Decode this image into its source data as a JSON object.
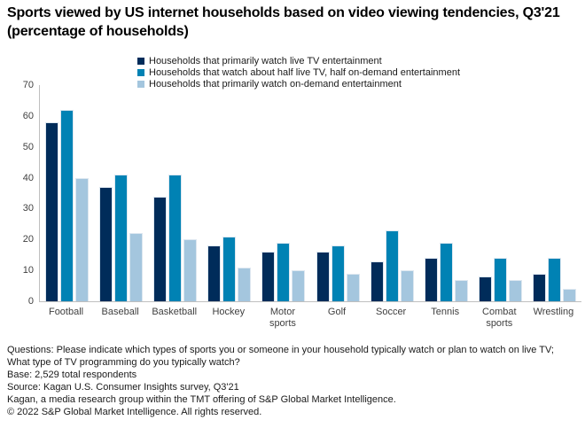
{
  "title": "Sports viewed by US internet households based on video viewing tendencies, Q3'21 (percentage of households)",
  "chart_data": {
    "type": "bar",
    "categories": [
      "Football",
      "Baseball",
      "Basketball",
      "Hockey",
      "Motor sports",
      "Golf",
      "Soccer",
      "Tennis",
      "Combat sports",
      "Wrestling"
    ],
    "series": [
      {
        "name": "Households that primarily watch live TV entertainment",
        "color": "#002c5a",
        "values": [
          58,
          37,
          34,
          18,
          16,
          16,
          13,
          14,
          8,
          9
        ]
      },
      {
        "name": "Households that watch about half live TV, half on-demand entertainment",
        "color": "#0082b4",
        "values": [
          62,
          41,
          41,
          21,
          19,
          18,
          23,
          19,
          14,
          14
        ]
      },
      {
        "name": "Households that primarily watch on-demand entertainment",
        "color": "#a4c6de",
        "values": [
          40,
          22,
          20,
          11,
          10,
          9,
          10,
          7,
          7,
          4
        ]
      }
    ],
    "ylabel": "",
    "xlabel": "",
    "ylim": [
      0,
      70
    ],
    "yticks": [
      0,
      10,
      20,
      30,
      40,
      50,
      60,
      70
    ],
    "grid": false,
    "legend_position": "top"
  },
  "footer": {
    "lines": [
      "Questions: Please indicate which types of sports you or someone in your household typically watch or plan to watch on live TV;",
      "What type of TV programming do you typically watch?",
      "Base: 2,529 total respondents",
      "Source: Kagan U.S. Consumer Insights survey, Q3'21",
      "Kagan, a media research group within the TMT offering of S&P Global Market Intelligence.",
      "© 2022 S&P Global Market Intelligence. All rights reserved."
    ]
  }
}
